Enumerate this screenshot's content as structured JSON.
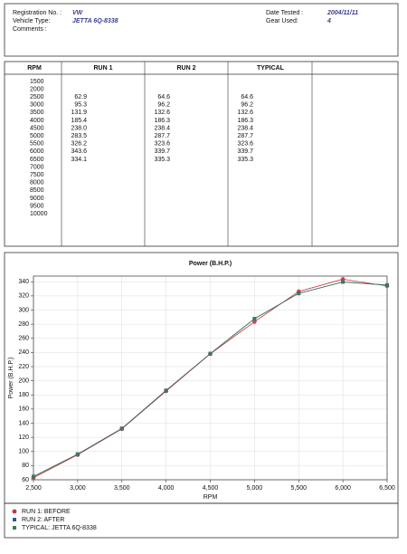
{
  "header": {
    "registration_label": "Registration No. :",
    "registration": "VW",
    "vehicle_type_label": "Vehicle Type:",
    "vehicle_type": "JETTA  6Q-8338",
    "comments_label": "Comments :",
    "date_label": "Date Tested :",
    "date": "2004/11/11",
    "gear_label": "Gear Used:",
    "gear": "4"
  },
  "table": {
    "columns": [
      "RPM",
      "RUN 1",
      "RUN 2",
      "TYPICAL"
    ],
    "rows": [
      [
        1500,
        null,
        null,
        null
      ],
      [
        2000,
        null,
        null,
        null
      ],
      [
        2500,
        62.9,
        64.6,
        64.6
      ],
      [
        3000,
        95.3,
        96.2,
        96.2
      ],
      [
        3500,
        131.9,
        132.6,
        132.6
      ],
      [
        4000,
        185.4,
        186.3,
        186.3
      ],
      [
        4500,
        "238.0",
        238.4,
        238.4
      ],
      [
        5000,
        283.5,
        287.7,
        287.7
      ],
      [
        5500,
        326.2,
        323.6,
        323.6
      ],
      [
        6000,
        343.6,
        339.7,
        339.7
      ],
      [
        6500,
        334.1,
        335.3,
        335.3
      ],
      [
        7000,
        null,
        null,
        null
      ],
      [
        7500,
        null,
        null,
        null
      ],
      [
        8000,
        null,
        null,
        null
      ],
      [
        8500,
        null,
        null,
        null
      ],
      [
        9000,
        null,
        null,
        null
      ],
      [
        9500,
        null,
        null,
        null
      ],
      [
        10000,
        null,
        null,
        null
      ]
    ]
  },
  "chart_data": {
    "type": "line",
    "title": "Power (B.H.P.)",
    "x_label": "RPM",
    "y_label": "Power (B.H.P.)",
    "x": [
      2500,
      3000,
      3500,
      4000,
      4500,
      5000,
      5500,
      6000,
      6500
    ],
    "series": [
      {
        "name": "RUN 1: BEFORE",
        "color": "#c8323c",
        "values": [
          62.9,
          95.3,
          131.9,
          185.4,
          238.0,
          283.5,
          326.2,
          343.6,
          334.1
        ]
      },
      {
        "name": "RUN 2: AFTER",
        "color": "#3a4fa0",
        "values": [
          64.6,
          96.2,
          132.6,
          186.3,
          238.4,
          287.7,
          323.6,
          339.7,
          335.3
        ]
      },
      {
        "name": "TYPICAL: JETTA  6Q-8338",
        "color": "#3f7a5a",
        "values": [
          64.6,
          96.2,
          132.6,
          186.3,
          238.4,
          287.7,
          323.6,
          339.7,
          335.3
        ]
      }
    ],
    "xlim": [
      2500,
      6500
    ],
    "xticks": [
      {
        "value": 2500,
        "label": "2,500"
      },
      {
        "value": 3000,
        "label": "3,000"
      },
      {
        "value": 3500,
        "label": "3,500"
      },
      {
        "value": 4000,
        "label": "4,000"
      },
      {
        "value": 4500,
        "label": "4,500"
      },
      {
        "value": 5000,
        "label": "5,000"
      },
      {
        "value": 5500,
        "label": "5,500"
      },
      {
        "value": 6000,
        "label": "6,000"
      },
      {
        "value": 6500,
        "label": "6,500"
      }
    ],
    "ylim": [
      60,
      348
    ],
    "yticks": [
      60,
      80,
      100,
      120,
      140,
      160,
      180,
      200,
      220,
      240,
      260,
      280,
      300,
      320,
      340
    ],
    "grid": true
  }
}
